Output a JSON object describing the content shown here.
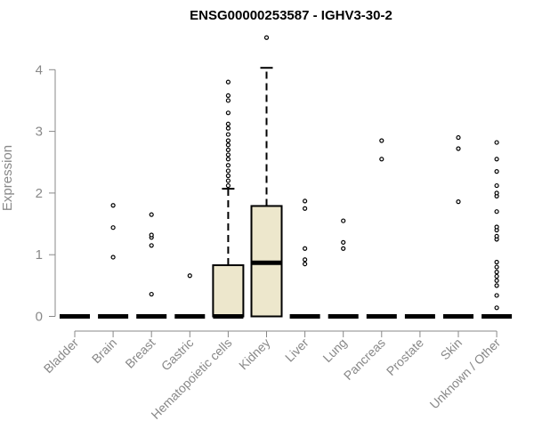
{
  "chart_data": {
    "type": "boxplot",
    "title": "ENSG00000253587 - IGHV3-30-2",
    "xlabel": "",
    "ylabel": "Expression",
    "ylim": [
      0,
      4.6
    ],
    "yticks": [
      0,
      1,
      2,
      3,
      4
    ],
    "box_fill": "#ede7cc",
    "axis_color": "#888888",
    "categories": [
      "Bladder",
      "Brain",
      "Breast",
      "Gastric",
      "Hematopoietic cells",
      "Kidney",
      "Liver",
      "Lung",
      "Pancreas",
      "Prostate",
      "Skin",
      "Unknown / Other"
    ],
    "boxes": [
      {
        "category": "Bladder",
        "q1": 0,
        "median": 0,
        "q3": 0,
        "whisker_low": 0,
        "whisker_high": 0,
        "outliers": []
      },
      {
        "category": "Brain",
        "q1": 0,
        "median": 0,
        "q3": 0,
        "whisker_low": 0,
        "whisker_high": 0,
        "outliers": [
          0.96,
          1.44,
          1.8
        ]
      },
      {
        "category": "Breast",
        "q1": 0,
        "median": 0,
        "q3": 0,
        "whisker_low": 0,
        "whisker_high": 0,
        "outliers": [
          0.36,
          1.15,
          1.28,
          1.32,
          1.65
        ]
      },
      {
        "category": "Gastric",
        "q1": 0,
        "median": 0,
        "q3": 0,
        "whisker_low": 0,
        "whisker_high": 0,
        "outliers": [
          0.66
        ]
      },
      {
        "category": "Hematopoietic cells",
        "q1": 0,
        "median": 0,
        "q3": 0.83,
        "whisker_low": 0,
        "whisker_high": 2.07,
        "outliers": [
          2.12,
          2.2,
          2.28,
          2.36,
          2.45,
          2.55,
          2.62,
          2.7,
          2.78,
          2.85,
          2.95,
          3.05,
          3.12,
          3.3,
          3.5,
          3.58,
          3.8
        ]
      },
      {
        "category": "Kidney",
        "q1": 0,
        "median": 0.87,
        "q3": 1.79,
        "whisker_low": 0,
        "whisker_high": 4.03,
        "outliers": [
          4.52
        ]
      },
      {
        "category": "Liver",
        "q1": 0,
        "median": 0,
        "q3": 0,
        "whisker_low": 0,
        "whisker_high": 0,
        "outliers": [
          0.85,
          0.92,
          1.1,
          1.75,
          1.87
        ]
      },
      {
        "category": "Lung",
        "q1": 0,
        "median": 0,
        "q3": 0,
        "whisker_low": 0,
        "whisker_high": 0,
        "outliers": [
          1.1,
          1.2,
          1.55
        ]
      },
      {
        "category": "Pancreas",
        "q1": 0,
        "median": 0,
        "q3": 0,
        "whisker_low": 0,
        "whisker_high": 0,
        "outliers": [
          2.55,
          2.85
        ]
      },
      {
        "category": "Prostate",
        "q1": 0,
        "median": 0,
        "q3": 0,
        "whisker_low": 0,
        "whisker_high": 0,
        "outliers": []
      },
      {
        "category": "Skin",
        "q1": 0,
        "median": 0,
        "q3": 0,
        "whisker_low": 0,
        "whisker_high": 0,
        "outliers": [
          1.86,
          2.72,
          2.9
        ]
      },
      {
        "category": "Unknown / Other",
        "q1": 0,
        "median": 0,
        "q3": 0,
        "whisker_low": 0,
        "whisker_high": 0,
        "outliers": [
          0.14,
          0.34,
          0.5,
          0.58,
          0.65,
          0.72,
          0.8,
          0.88,
          1.25,
          1.3,
          1.4,
          1.45,
          1.7,
          1.95,
          2.0,
          2.12,
          2.35,
          2.55,
          2.82
        ]
      }
    ]
  }
}
